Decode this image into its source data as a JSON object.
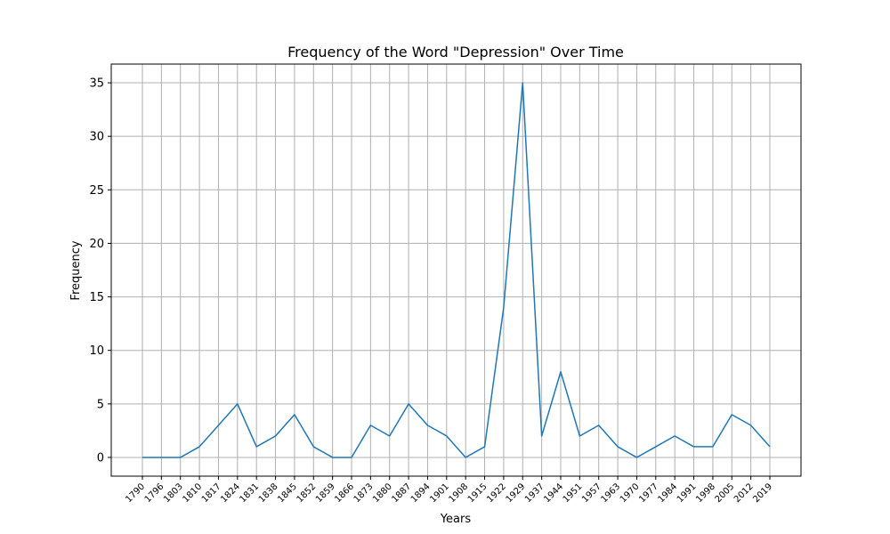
{
  "chart_data": {
    "type": "line",
    "title": "Frequency of the Word \"Depression\" Over Time",
    "xlabel": "Years",
    "ylabel": "Frequency",
    "categories": [
      "1790",
      "1796",
      "1803",
      "1810",
      "1817",
      "1824",
      "1831",
      "1838",
      "1845",
      "1852",
      "1859",
      "1866",
      "1873",
      "1880",
      "1887",
      "1894",
      "1901",
      "1908",
      "1915",
      "1922",
      "1929",
      "1937",
      "1944",
      "1951",
      "1957",
      "1963",
      "1970",
      "1977",
      "1984",
      "1991",
      "1998",
      "2005",
      "2012",
      "2019"
    ],
    "series": [
      {
        "values": [
          0,
          0,
          0,
          1,
          3,
          5,
          1,
          2,
          4,
          1,
          0,
          0,
          3,
          2,
          5,
          3,
          2,
          0,
          1,
          14,
          35,
          2,
          8,
          2,
          3,
          1,
          0,
          1,
          2,
          1,
          1,
          4,
          3,
          1
        ],
        "color": "#1f77b4"
      }
    ],
    "ylim": [
      -1.75,
      36.75
    ],
    "yticks": [
      0,
      5,
      10,
      15,
      20,
      25,
      30,
      35
    ],
    "grid": true,
    "xtick_rotation": "45"
  }
}
